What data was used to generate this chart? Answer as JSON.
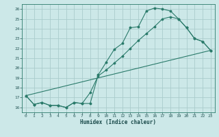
{
  "xlabel": "Humidex (Indice chaleur)",
  "bg_color": "#cce8e8",
  "grid_color": "#aacccc",
  "line_color": "#2a7a6a",
  "xlim": [
    -0.5,
    23.5
  ],
  "ylim": [
    15.5,
    26.5
  ],
  "xticks": [
    0,
    1,
    2,
    3,
    4,
    5,
    6,
    7,
    8,
    9,
    10,
    11,
    12,
    13,
    14,
    15,
    16,
    17,
    18,
    19,
    20,
    21,
    22,
    23
  ],
  "yticks": [
    16,
    17,
    18,
    19,
    20,
    21,
    22,
    23,
    24,
    25,
    26
  ],
  "line1_x": [
    0,
    1,
    2,
    3,
    4,
    5,
    6,
    7,
    8,
    9,
    10,
    11,
    12,
    13,
    14,
    15,
    16,
    17,
    18,
    19,
    20,
    21,
    22,
    23
  ],
  "line1_y": [
    17.2,
    16.3,
    16.5,
    16.2,
    16.2,
    16.0,
    16.5,
    16.4,
    16.4,
    19.3,
    20.6,
    21.9,
    22.5,
    24.1,
    24.2,
    25.8,
    26.1,
    26.0,
    25.8,
    25.0,
    24.1,
    23.0,
    22.7,
    21.8
  ],
  "line2_x": [
    0,
    1,
    2,
    3,
    4,
    5,
    6,
    7,
    8,
    9,
    10,
    11,
    12,
    13,
    14,
    15,
    16,
    17,
    18,
    19,
    20,
    21,
    22,
    23
  ],
  "line2_y": [
    17.2,
    16.3,
    16.5,
    16.2,
    16.2,
    16.0,
    16.5,
    16.4,
    17.5,
    19.2,
    19.8,
    20.5,
    21.2,
    22.0,
    22.8,
    23.5,
    24.2,
    25.0,
    25.2,
    25.0,
    24.1,
    23.0,
    22.7,
    21.8
  ],
  "line3_x": [
    0,
    23
  ],
  "line3_y": [
    17.2,
    21.8
  ]
}
